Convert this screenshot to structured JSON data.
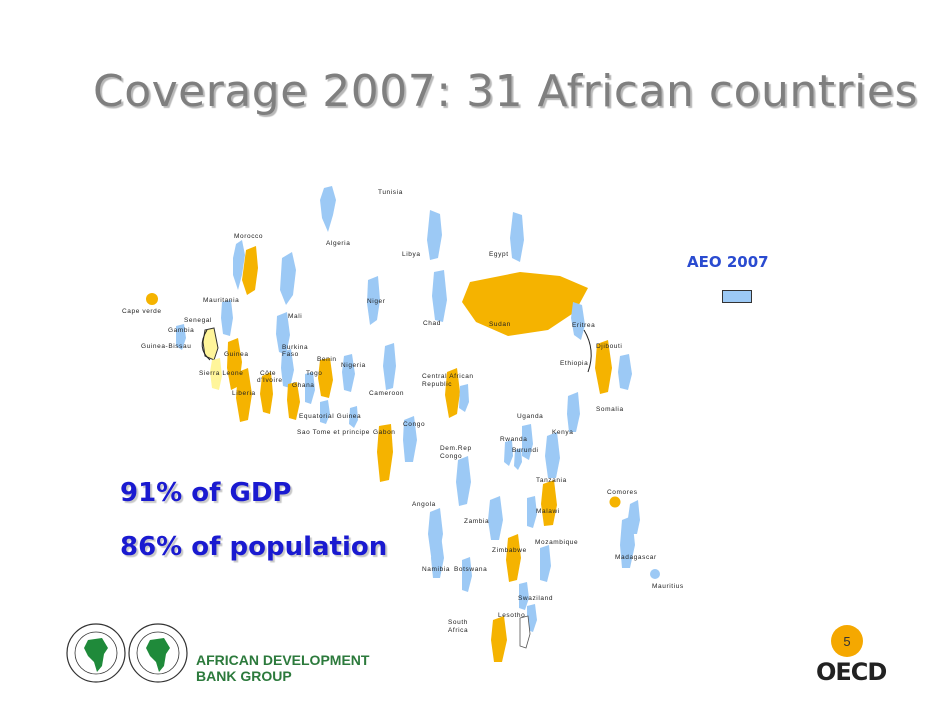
{
  "title": "Coverage 2007: 31 African countries",
  "legend": {
    "label": "AEO 2007",
    "swatch_color": "#9cc9f5"
  },
  "stats": {
    "gdp": "91% of GDP",
    "population": "86% of population"
  },
  "colors": {
    "covered": "#f5b300",
    "not_covered": "#9cc9f5",
    "highlight": "#fff59a",
    "text_blue": "#1a1ad0"
  },
  "countries": {
    "tunisia": "Tunisia",
    "morocco": "Morocco",
    "algeria": "Algeria",
    "libya": "Libya",
    "egypt": "Egypt",
    "cape_verde": "Cape verde",
    "mauritania": "Mauritania",
    "niger": "Niger",
    "senegal": "Senegal",
    "gambia": "Gambia",
    "mali": "Mali",
    "chad": "Chad",
    "sudan": "Sudan",
    "eritrea": "Eritrea",
    "guinea_bissau": "Guinea-Bissau",
    "guinea": "Guinea",
    "burkina_faso_1": "Burkina",
    "burkina_faso_2": "Faso",
    "djibouti": "Djibouti",
    "benin": "Benin",
    "nigeria": "Nigeria",
    "ethiopia": "Ethiopia",
    "sierra_leone": "Sierra Leone",
    "cote_1": "Côte",
    "cote_2": "d'Ivoire",
    "togo": "Togo",
    "car_1": "Central African",
    "car_2": "Republic",
    "ghana": "Ghana",
    "liberia": "Liberia",
    "cameroon": "Cameroon",
    "somalia": "Somalia",
    "equatorial_guinea": "Equatorial Guinea",
    "uganda": "Uganda",
    "congo": "Congo",
    "sao_tome": "Sao Tome et principe",
    "gabon": "Gabon",
    "kenya": "Kenya",
    "rwanda": "Rwanda",
    "drc_1": "Dem.Rep",
    "drc_2": "Congo",
    "burundi": "Burundi",
    "tanzania": "Tanzania",
    "comores": "Comores",
    "angola": "Angola",
    "malawi": "Malawi",
    "zambia": "Zambia",
    "mozambique": "Mozambique",
    "zimbabwe": "Zimbabwe",
    "madagascar": "Madagascar",
    "namibia": "Namibia",
    "botswana": "Botswana",
    "mauritius": "Mauritius",
    "swaziland": "Swaziland",
    "lesotho": "Lesotho",
    "south_africa_1": "South",
    "south_africa_2": "Africa"
  },
  "footer": {
    "afdb_line1": "AFRICAN DEVELOPMENT",
    "afdb_line2": "BANK GROUP",
    "page_number": "5",
    "oecd": "OECD"
  }
}
